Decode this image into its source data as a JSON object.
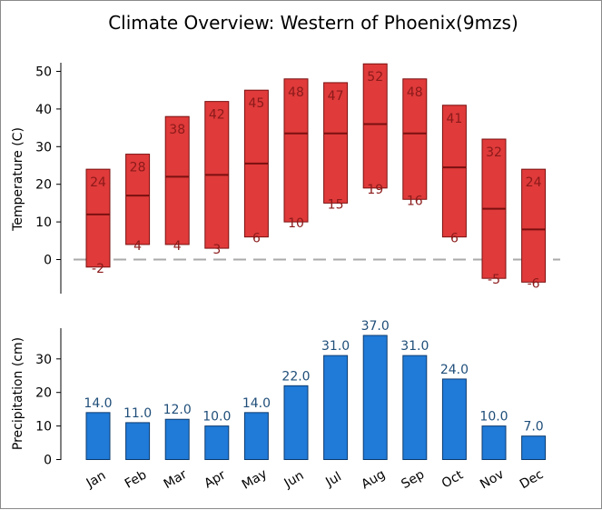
{
  "chart_data": [
    {
      "type": "bar",
      "title": "Climate Overview: Western of Phoenix(9mzs)",
      "ylabel": "Temperature (C)",
      "ylim": [
        -9,
        53
      ],
      "yticks": [
        "0",
        "10",
        "20",
        "30",
        "40",
        "50"
      ],
      "categories": [
        "Jan",
        "Feb",
        "Mar",
        "Apr",
        "May",
        "Jun",
        "Jul",
        "Aug",
        "Sep",
        "Oct",
        "Nov",
        "Dec"
      ],
      "series": [
        {
          "low": [
            -2,
            4,
            4,
            3,
            6,
            10,
            15,
            19,
            16,
            6,
            -5,
            -6
          ],
          "high": [
            24,
            28,
            38,
            42,
            45,
            48,
            47,
            52,
            48,
            41,
            32,
            24
          ],
          "mean": [
            12,
            17,
            22,
            22.5,
            25.5,
            33.5,
            33.5,
            36,
            33.5,
            24.5,
            13.5,
            8
          ]
        }
      ],
      "low_labels": [
        "-2",
        "4",
        "4",
        "3",
        "6",
        "10",
        "15",
        "19",
        "16",
        "6",
        "-5",
        "-6"
      ],
      "high_labels": [
        "24",
        "28",
        "38",
        "42",
        "45",
        "48",
        "47",
        "52",
        "48",
        "41",
        "32",
        "24"
      ],
      "reference_line": 0,
      "colors": {
        "bar": "#e03a3a",
        "edge": "#7a1010",
        "label": "#8b1a1a",
        "ref": "#aaaaaa"
      }
    },
    {
      "type": "bar",
      "ylabel": "Precipitation (cm)",
      "ylim": [
        0,
        40
      ],
      "yticks": [
        "0",
        "10",
        "20",
        "30"
      ],
      "categories": [
        "Jan",
        "Feb",
        "Mar",
        "Apr",
        "May",
        "Jun",
        "Jul",
        "Aug",
        "Sep",
        "Oct",
        "Nov",
        "Dec"
      ],
      "values": [
        14,
        11,
        12,
        10,
        14,
        22,
        31,
        37,
        31,
        24,
        10,
        7
      ],
      "value_labels": [
        "14.0",
        "11.0",
        "12.0",
        "10.0",
        "14.0",
        "22.0",
        "31.0",
        "37.0",
        "31.0",
        "24.0",
        "10.0",
        "7.0"
      ],
      "colors": {
        "bar": "#1f7ad8",
        "edge": "#0d3b6e",
        "label": "#1f4e79"
      }
    }
  ]
}
